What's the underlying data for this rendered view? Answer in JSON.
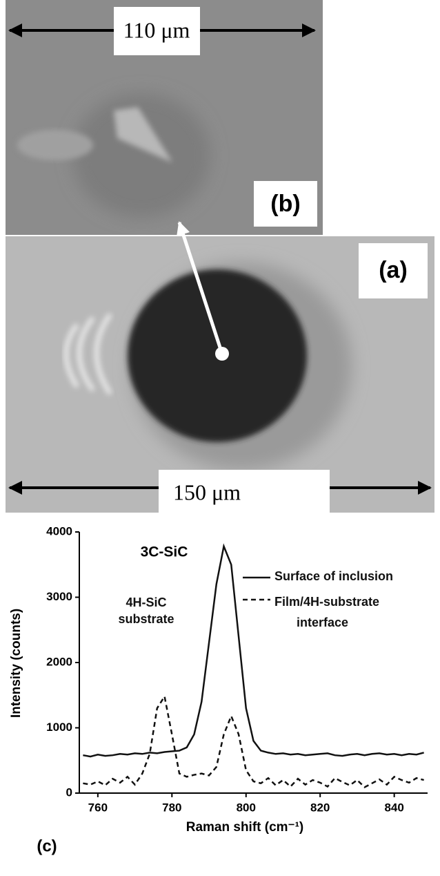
{
  "micrographs": {
    "panel_b": {
      "scale_label": "110 μm",
      "label": "(b)"
    },
    "panel_a": {
      "scale_label": "150 μm",
      "label": "(a)"
    }
  },
  "chart_data": {
    "type": "line",
    "panel_label": "(c)",
    "x_label": "Raman shift (cm⁻¹)",
    "y_label": "Intensity (counts)",
    "annotations": [
      "3C-SiC",
      "4H-SiC substrate"
    ],
    "xlim": [
      755,
      849
    ],
    "xticks": [
      760,
      780,
      800,
      820,
      840
    ],
    "ylim": [
      0,
      4000
    ],
    "yticks": [
      0,
      1000,
      2000,
      3000,
      4000
    ],
    "x": [
      756,
      758,
      760,
      762,
      764,
      766,
      768,
      770,
      772,
      774,
      776,
      778,
      780,
      782,
      784,
      786,
      788,
      790,
      792,
      794,
      796,
      798,
      800,
      802,
      804,
      806,
      808,
      810,
      812,
      814,
      816,
      818,
      820,
      822,
      824,
      826,
      828,
      830,
      832,
      834,
      836,
      838,
      840,
      842,
      844,
      846,
      848
    ],
    "series": [
      {
        "name": "Surface of inclusion",
        "color": "#111111",
        "dash": "solid",
        "values": [
          580,
          560,
          590,
          570,
          580,
          600,
          590,
          610,
          600,
          620,
          610,
          630,
          640,
          650,
          700,
          900,
          1400,
          2300,
          3200,
          3780,
          3500,
          2400,
          1300,
          800,
          650,
          620,
          600,
          610,
          590,
          600,
          580,
          590,
          600,
          610,
          580,
          570,
          590,
          600,
          580,
          600,
          610,
          590,
          600,
          580,
          600,
          590,
          620
        ]
      },
      {
        "name": "Film/4H-substrate interface",
        "color": "#111111",
        "dash": "dashed",
        "values": [
          150,
          130,
          180,
          120,
          220,
          160,
          250,
          130,
          300,
          600,
          1300,
          1480,
          900,
          300,
          250,
          280,
          300,
          270,
          400,
          900,
          1180,
          900,
          350,
          180,
          150,
          230,
          120,
          200,
          100,
          220,
          130,
          200,
          160,
          100,
          230,
          170,
          120,
          200,
          90,
          150,
          210,
          130,
          250,
          200,
          160,
          230,
          200
        ]
      }
    ]
  }
}
